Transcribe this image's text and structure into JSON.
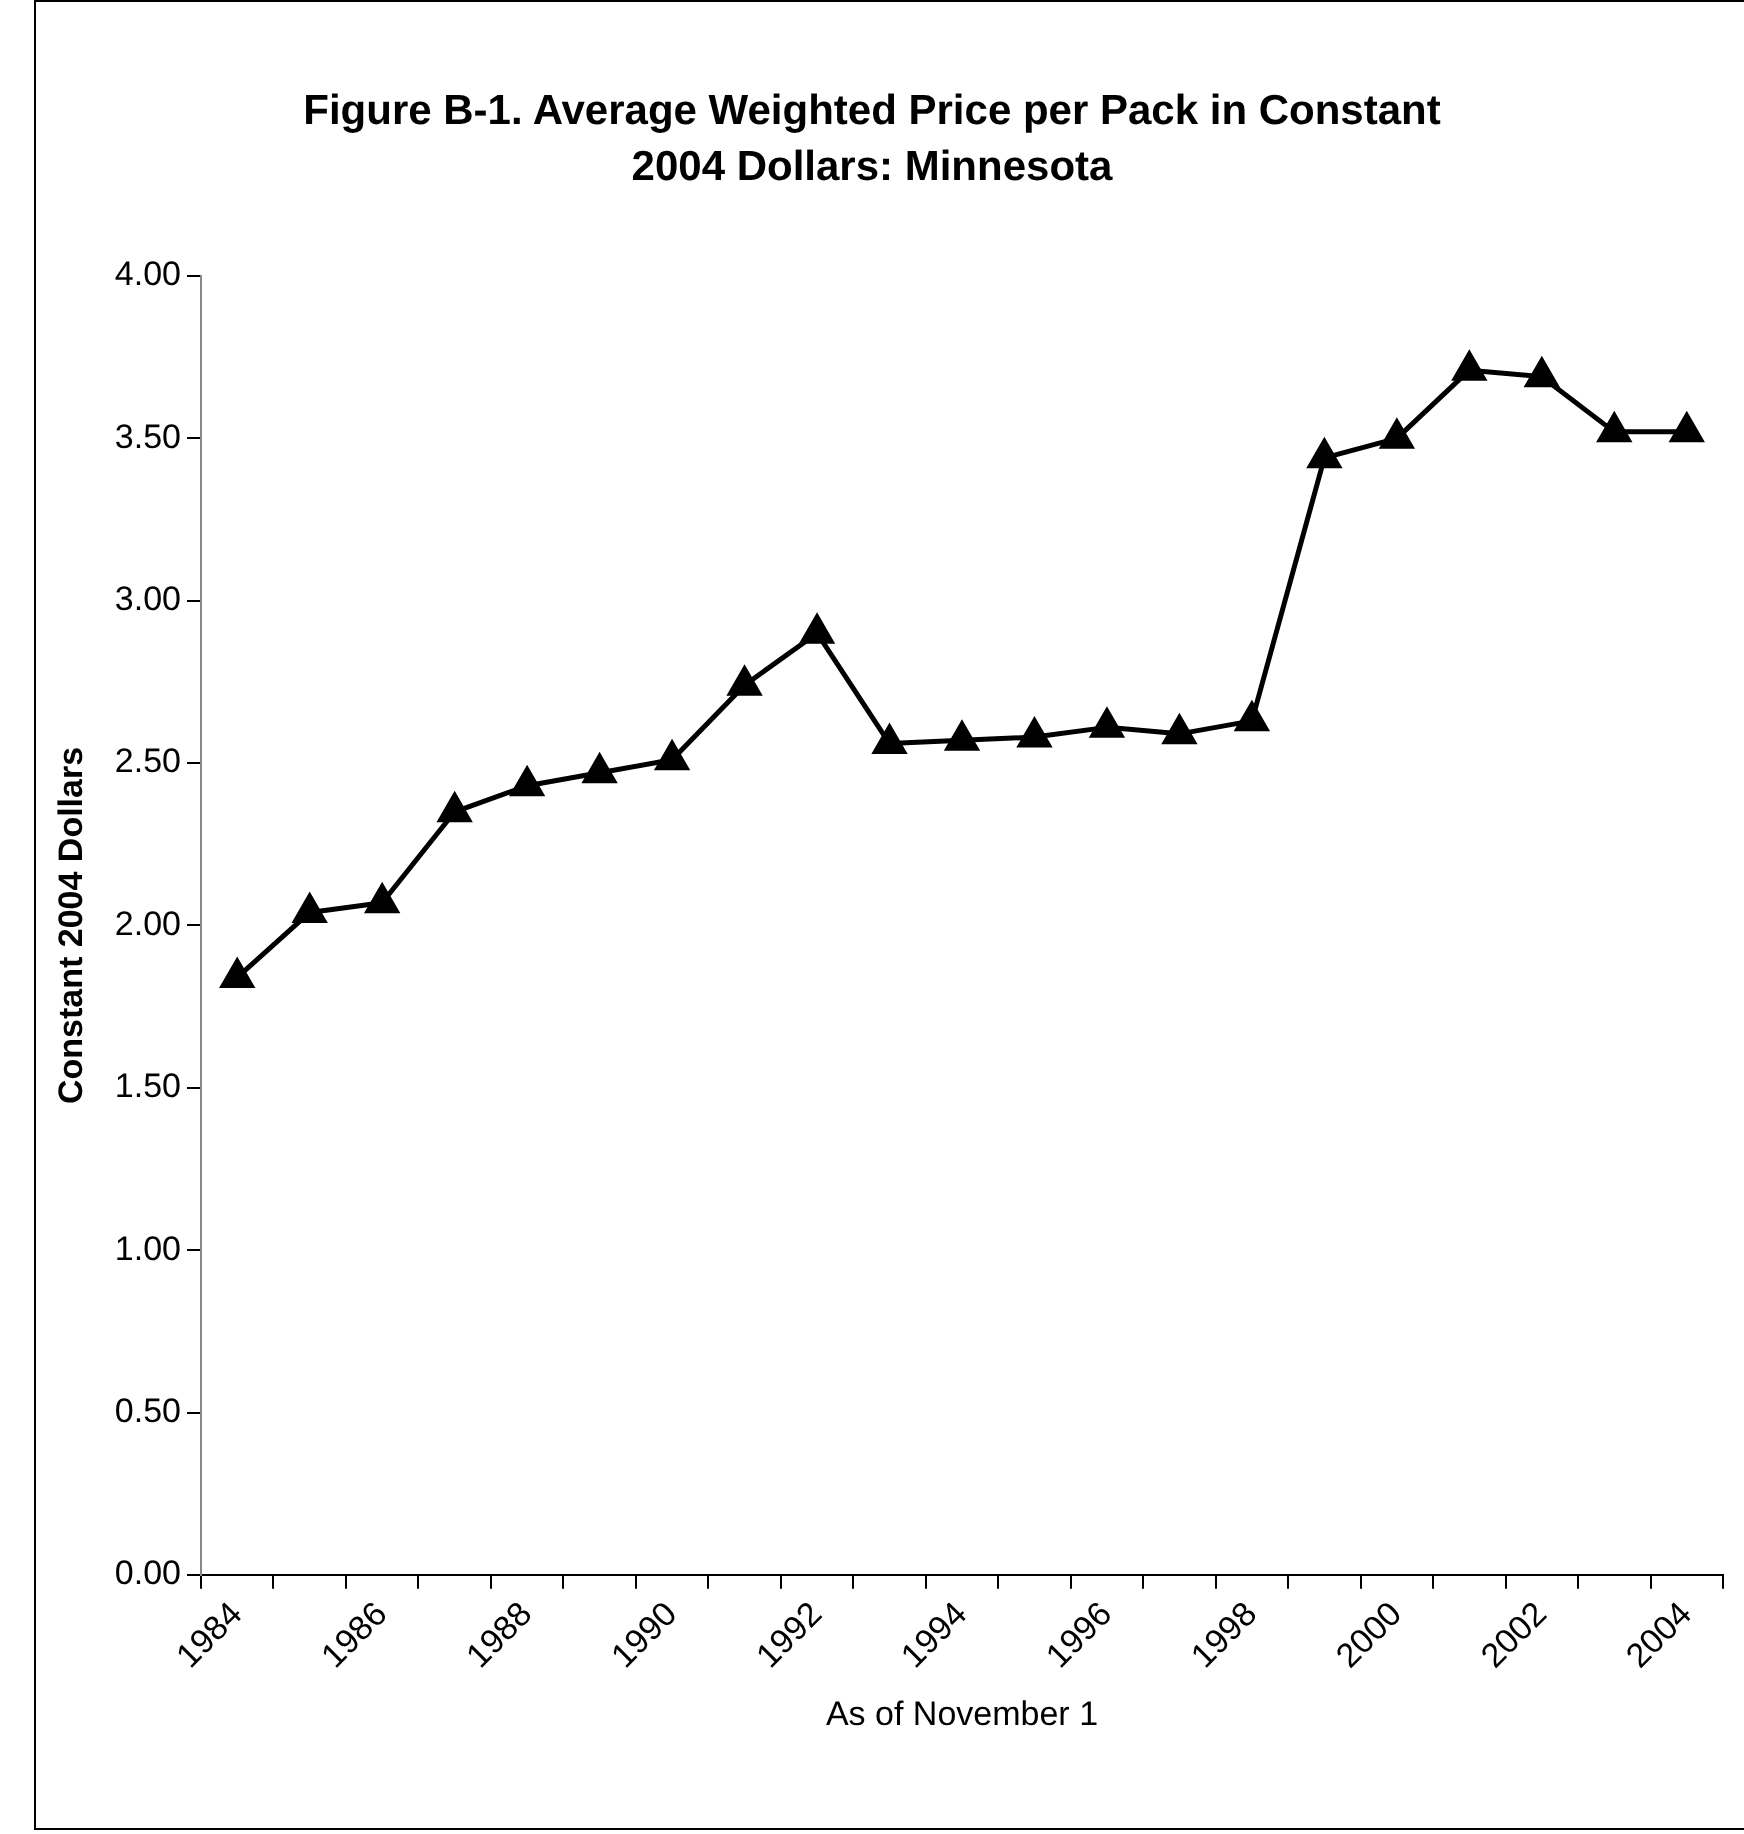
{
  "chart_data": {
    "type": "line",
    "title": "Figure B-1. Average Weighted Price per Pack in Constant 2004 Dollars: Minnesota",
    "xlabel": "As of November 1",
    "ylabel": "Constant 2004 Dollars",
    "categories": [
      "1984",
      null,
      "1986",
      null,
      "1988",
      null,
      "1990",
      null,
      "1992",
      null,
      "1994",
      null,
      "1996",
      null,
      "1998",
      null,
      "2000",
      null,
      "2002",
      null,
      "2004"
    ],
    "series": [
      {
        "color": "#000000",
        "values": [
          1.84,
          2.04,
          2.07,
          2.35,
          2.43,
          2.47,
          2.51,
          2.74,
          2.9,
          2.56,
          2.57,
          2.58,
          2.61,
          2.59,
          2.63,
          3.44,
          3.5,
          3.71,
          3.69,
          3.52,
          3.52
        ]
      }
    ],
    "ylim": [
      0,
      4
    ],
    "yticks": [
      {
        "value": 0,
        "label": "0.00"
      },
      {
        "value": 0.5,
        "label": "0.50"
      },
      {
        "value": 1,
        "label": "1.00"
      },
      {
        "value": 1.5,
        "label": "1.50"
      },
      {
        "value": 2,
        "label": "2.00"
      },
      {
        "value": 2.5,
        "label": "2.50"
      },
      {
        "value": 3,
        "label": "3.00"
      },
      {
        "value": 3.5,
        "label": "3.50"
      },
      {
        "value": 4,
        "label": "4.00"
      }
    ],
    "grid": false,
    "legend": false,
    "marker": "triangle",
    "line_style": "solid"
  }
}
